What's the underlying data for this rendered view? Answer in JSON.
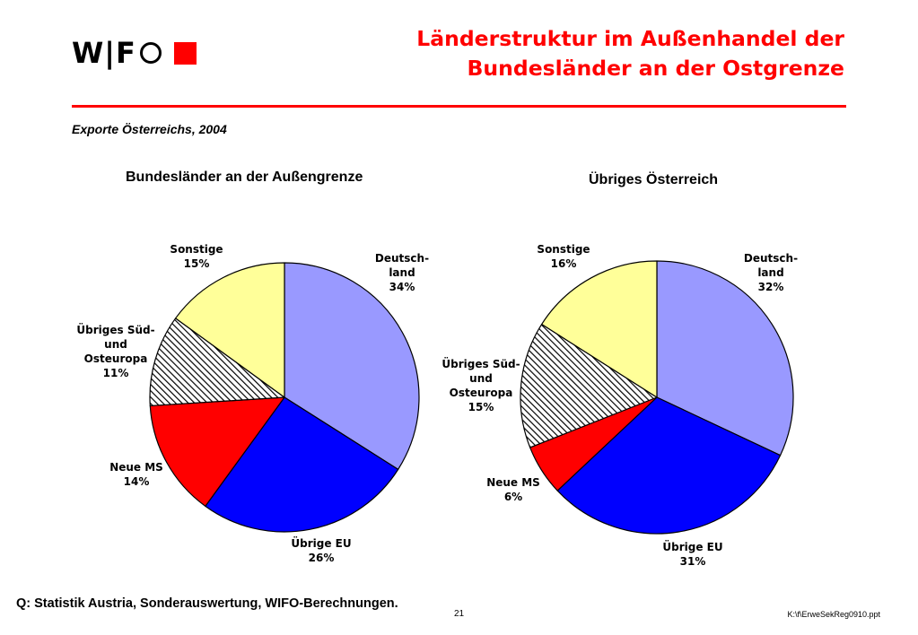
{
  "header": {
    "logo_text": "W|F",
    "title_line1": "Länderstruktur im Außenhandel der",
    "title_line2": "Bundesländer an der Ostgrenze",
    "subtitle": "Exporte Österreichs, 2004"
  },
  "colors": {
    "accent": "#ff0000",
    "deutschland": "#9999ff",
    "uebrige_eu": "#0000ff",
    "neue_ms": "#ff0000",
    "suedosteuropa_pattern": "#000000",
    "sonstige": "#ffff99"
  },
  "chart_data": [
    {
      "type": "pie",
      "title": "Bundesländer an der Außengrenze",
      "slices": [
        {
          "label": "Deutsch-land",
          "display": [
            "Deutsch-",
            "land",
            "34%"
          ],
          "value": 34,
          "color": "#9999ff"
        },
        {
          "label": "Übrige EU",
          "display": [
            "Übrige EU",
            "26%"
          ],
          "value": 26,
          "color": "#0000ff"
        },
        {
          "label": "Neue MS",
          "display": [
            "Neue MS",
            "14%"
          ],
          "value": 14,
          "color": "#ff0000"
        },
        {
          "label": "Übriges Süd- und Osteuropa",
          "display": [
            "Übriges Süd-",
            "und",
            "Osteuropa",
            "11%"
          ],
          "value": 11,
          "color": "pattern"
        },
        {
          "label": "Sonstige",
          "display": [
            "Sonstige",
            "15%"
          ],
          "value": 15,
          "color": "#ffff99"
        }
      ]
    },
    {
      "type": "pie",
      "title": "Übriges Österreich",
      "slices": [
        {
          "label": "Deutsch-land",
          "display": [
            "Deutsch-",
            "land",
            "32%"
          ],
          "value": 32,
          "color": "#9999ff"
        },
        {
          "label": "Übrige EU",
          "display": [
            "Übrige EU",
            "31%"
          ],
          "value": 31,
          "color": "#0000ff"
        },
        {
          "label": "Neue MS",
          "display": [
            "Neue MS",
            "6%"
          ],
          "value": 6,
          "color": "#ff0000"
        },
        {
          "label": "Übriges Süd- und Osteuropa",
          "display": [
            "Übriges Süd-",
            "und",
            "Osteuropa",
            "15%"
          ],
          "value": 15,
          "color": "pattern"
        },
        {
          "label": "Sonstige",
          "display": [
            "Sonstige",
            "16%"
          ],
          "value": 16,
          "color": "#ffff99"
        }
      ]
    }
  ],
  "footer": {
    "source": "Q: Statistik Austria, Sonderauswertung, WIFO-Berechnungen.",
    "page_number": "21",
    "file_path": "K:\\f\\ErweSekReg0910.ppt"
  }
}
